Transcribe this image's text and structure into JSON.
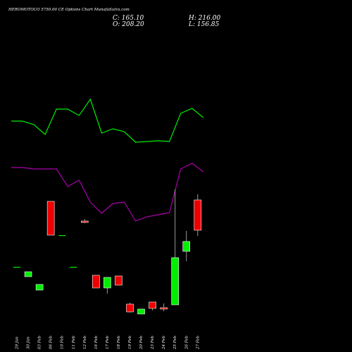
{
  "header": {
    "title": "HEROMOTOCO 5750.00 CE Options Chart MunafaSutra.com",
    "close_label": "C: 165.10",
    "open_label": "O: 208.20",
    "high_label": "H: 216.00",
    "low_label": "L: 156.85"
  },
  "colors": {
    "background": "#000000",
    "up": "#00ee00",
    "down": "#ee0000",
    "upper_band": "#00ee00",
    "lower_band": "#aa00aa",
    "wick": "#999999"
  },
  "chart_data": {
    "type": "candlestick",
    "categories": [
      "29 Jan",
      "30 Jan",
      "03 Feb",
      "06 Feb",
      "10 Feb",
      "11 Feb",
      "12 Feb",
      "16 Feb",
      "17 Feb",
      "18 Feb",
      "19 Feb",
      "20 Feb",
      "23 Feb",
      "24 Feb",
      "25 Feb",
      "26 Feb",
      "27 Feb"
    ],
    "ohlc": [
      {
        "o": 113,
        "h": 113,
        "l": 113,
        "c": 113
      },
      {
        "o": 99,
        "h": 106,
        "l": 99,
        "c": 106
      },
      {
        "o": 80,
        "h": 88,
        "l": 80,
        "c": 88
      },
      {
        "o": 206,
        "h": 206,
        "l": 158,
        "c": 158
      },
      {
        "o": 158,
        "h": 158,
        "l": 157,
        "c": 158
      },
      {
        "o": 113,
        "h": 113,
        "l": 112,
        "c": 113
      },
      {
        "o": 178,
        "h": 181,
        "l": 175,
        "c": 176
      },
      {
        "o": 101,
        "h": 101,
        "l": 83,
        "c": 83
      },
      {
        "o": 83,
        "h": 98,
        "l": 75,
        "c": 98
      },
      {
        "o": 100,
        "h": 100,
        "l": 87,
        "c": 87
      },
      {
        "o": 60,
        "h": 62,
        "l": 48,
        "c": 49
      },
      {
        "o": 46,
        "h": 53,
        "l": 46,
        "c": 53
      },
      {
        "o": 63,
        "h": 63,
        "l": 51,
        "c": 54
      },
      {
        "o": 55,
        "h": 61,
        "l": 50,
        "c": 53
      },
      {
        "o": 59,
        "h": 223,
        "l": 59,
        "c": 126
      },
      {
        "o": 135,
        "h": 164,
        "l": 121,
        "c": 149
      },
      {
        "o": 208,
        "h": 216,
        "l": 157,
        "c": 165
      }
    ],
    "upper_band": [
      320,
      320,
      315,
      301,
      337,
      337,
      328,
      351,
      303,
      309,
      305,
      290,
      291,
      292,
      291,
      331,
      338,
      325
    ],
    "lower_band": [
      254,
      254,
      252,
      252,
      252,
      227,
      236,
      205,
      189,
      203,
      205,
      178,
      184,
      187,
      190,
      252,
      260,
      248
    ],
    "band_x_index": [
      -0.5,
      0.5,
      1.5,
      2.5,
      3.5,
      4.5,
      5.5,
      6.5,
      7.5,
      8.5,
      9.5,
      10.5,
      11.5,
      12.5,
      13.5,
      14.5,
      15.5,
      16.5
    ]
  }
}
